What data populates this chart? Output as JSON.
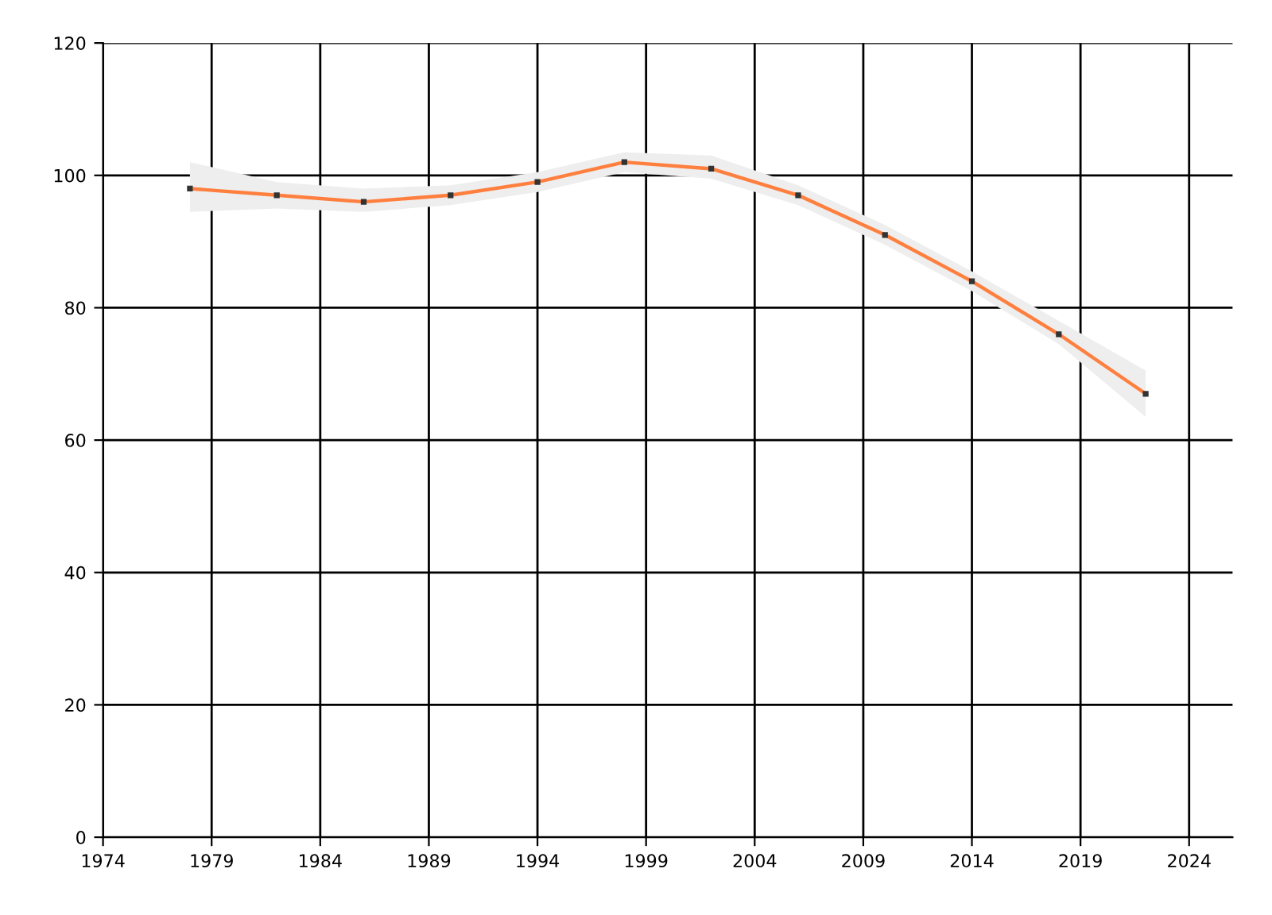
{
  "chart_data": {
    "type": "line",
    "x": [
      1978,
      1982,
      1986,
      1990,
      1994,
      1998,
      2002,
      2006,
      2010,
      2014,
      2018,
      2022
    ],
    "series": [
      {
        "color": "#ff7f3f",
        "values": [
          98,
          97,
          96,
          97,
          99,
          102,
          101,
          97,
          91,
          84,
          76,
          67
        ],
        "lower": [
          94.5,
          95,
          94.5,
          95.5,
          97.5,
          100.5,
          99.5,
          95.5,
          89.5,
          82.5,
          74.5,
          63.5
        ],
        "upper": [
          102,
          99,
          98,
          98.5,
          100.5,
          103.5,
          103,
          98.5,
          92.5,
          85.5,
          78,
          70.5
        ]
      }
    ],
    "xlim": [
      1974,
      2026
    ],
    "xticks": [
      1974,
      1979,
      1984,
      1989,
      1994,
      1999,
      2004,
      2009,
      2014,
      2019,
      2024
    ],
    "ylim": [
      0,
      120
    ],
    "yticks": [
      0,
      20,
      40,
      60,
      80,
      100,
      120
    ],
    "grid": true,
    "marker": "square",
    "line_style": "solid"
  }
}
